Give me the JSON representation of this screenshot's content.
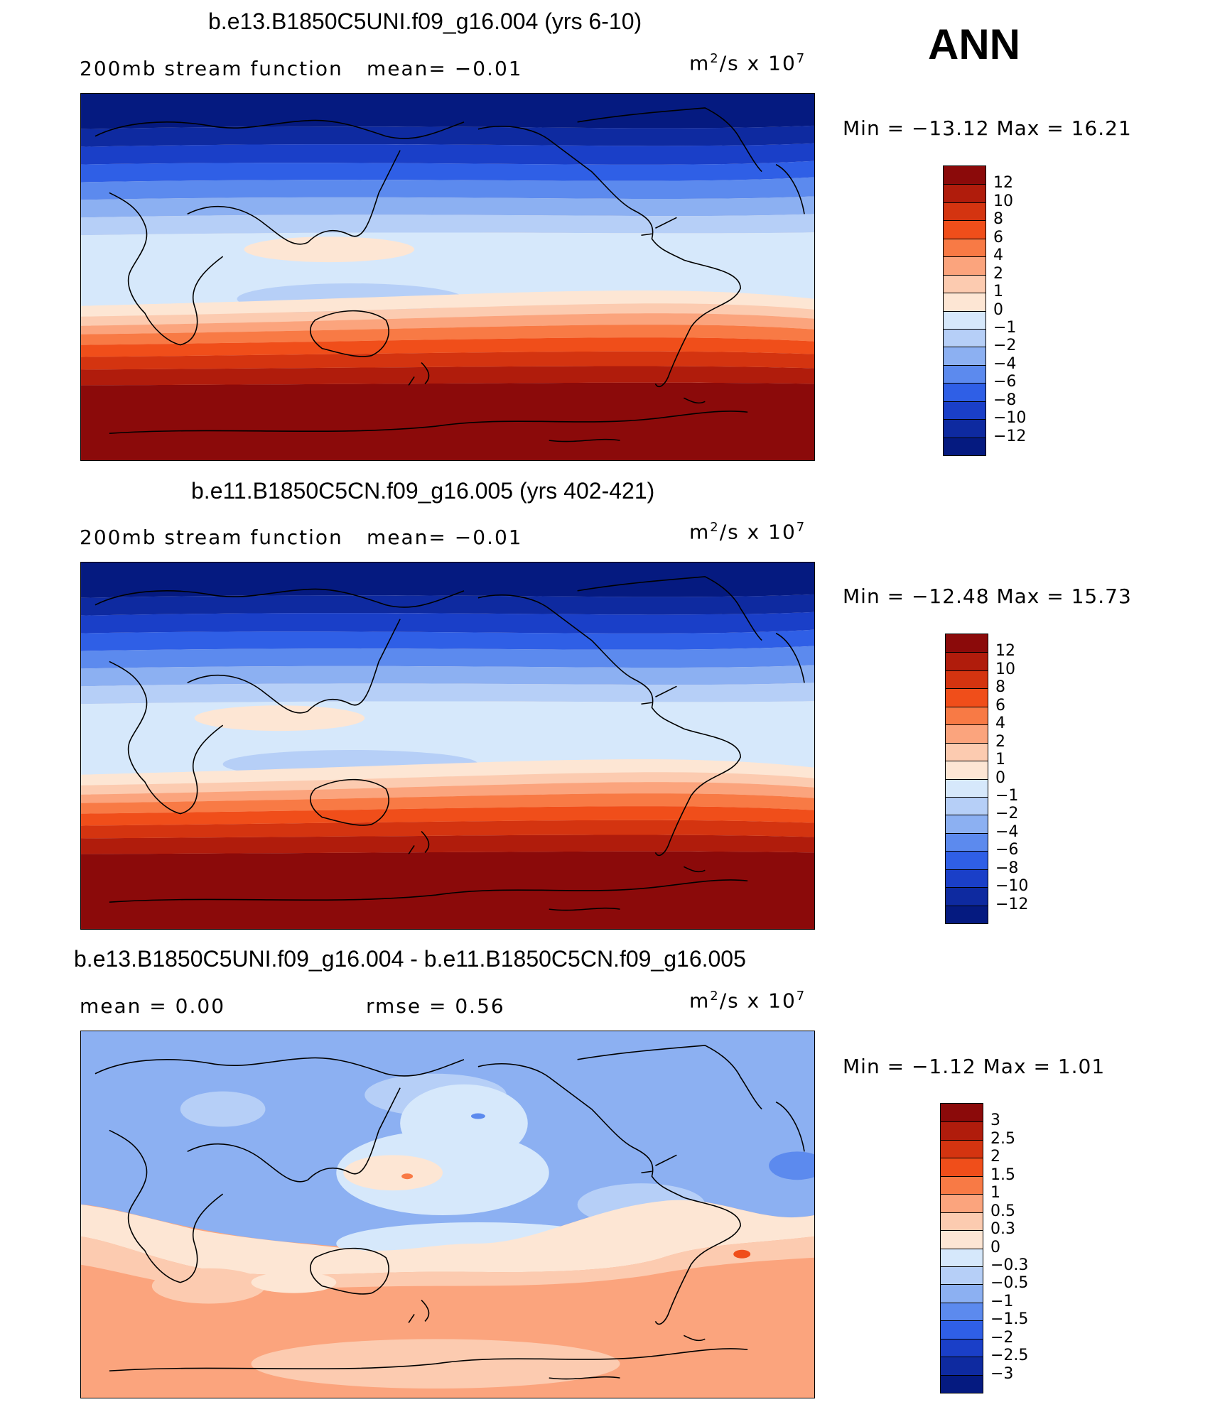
{
  "season": "ANN",
  "panels": [
    {
      "title": "b.e13.B1850C5UNI.f09_g16.004 (yrs 6-10)",
      "left_label": "200mb  stream  function",
      "right_label": "mean=   −0.01",
      "units_base": "m",
      "units_exp": "2",
      "units_mid": "/s  x  10",
      "units_exp2": "7",
      "minmax": "Min  =  −13.12  Max  =    16.21",
      "map_kind": "absolute"
    },
    {
      "title": "b.e11.B1850C5CN.f09_g16.005 (yrs 402-421)",
      "left_label": "200mb  stream  function",
      "right_label": "mean=   −0.01",
      "units_base": "m",
      "units_exp": "2",
      "units_mid": "/s  x  10",
      "units_exp2": "7",
      "minmax": "Min  =  −12.48  Max  =    15.73",
      "map_kind": "absolute"
    },
    {
      "title": "b.e13.B1850C5UNI.f09_g16.004 - b.e11.B1850C5CN.f09_g16.005",
      "left_label": "mean  =      0.00",
      "right_label": "rmse  =      0.56",
      "units_base": "m",
      "units_exp": "2",
      "units_mid": "/s  x  10",
      "units_exp2": "7",
      "minmax": "Min  =     −1.12  Max  =       1.01",
      "map_kind": "difference"
    }
  ],
  "chart_data": [
    {
      "type": "heatmap",
      "title": "b.e13.B1850C5UNI.f09_g16.004 (yrs 6-10)",
      "variable": "200mb stream function",
      "units": "m^2/s x 10^7",
      "mean": -0.01,
      "min": -13.12,
      "max": 16.21,
      "colorbar_levels": [
        "12",
        "10",
        "8",
        "6",
        "4",
        "2",
        "1",
        "0",
        "−1",
        "−2",
        "−4",
        "−6",
        "−8",
        "−10",
        "−12"
      ],
      "colorbar_colors": [
        "#8b0a0a",
        "#b01c0c",
        "#d43410",
        "#f04e1a",
        "#f87a45",
        "#fba47d",
        "#fccbb0",
        "#fde6d4",
        "#d6e8fb",
        "#b6cff7",
        "#8cb0f2",
        "#5c8aee",
        "#2f5fe6",
        "#1a3fc8",
        "#0e2aa0",
        "#051a80"
      ]
    },
    {
      "type": "heatmap",
      "title": "b.e11.B1850C5CN.f09_g16.005 (yrs 402-421)",
      "variable": "200mb stream function",
      "units": "m^2/s x 10^7",
      "mean": -0.01,
      "min": -12.48,
      "max": 15.73,
      "colorbar_levels": [
        "12",
        "10",
        "8",
        "6",
        "4",
        "2",
        "1",
        "0",
        "−1",
        "−2",
        "−4",
        "−6",
        "−8",
        "−10",
        "−12"
      ],
      "colorbar_colors": [
        "#8b0a0a",
        "#b01c0c",
        "#d43410",
        "#f04e1a",
        "#f87a45",
        "#fba47d",
        "#fccbb0",
        "#fde6d4",
        "#d6e8fb",
        "#b6cff7",
        "#8cb0f2",
        "#5c8aee",
        "#2f5fe6",
        "#1a3fc8",
        "#0e2aa0",
        "#051a80"
      ]
    },
    {
      "type": "heatmap",
      "title": "b.e13.B1850C5UNI.f09_g16.004 - b.e11.B1850C5CN.f09_g16.005",
      "variable": "difference",
      "units": "m^2/s x 10^7",
      "mean": 0.0,
      "rmse": 0.56,
      "min": -1.12,
      "max": 1.01,
      "colorbar_levels": [
        "3",
        "2.5",
        "2",
        "1.5",
        "1",
        "0.5",
        "0.3",
        "0",
        "−0.3",
        "−0.5",
        "−1",
        "−1.5",
        "−2",
        "−2.5",
        "−3"
      ],
      "colorbar_colors": [
        "#8b0a0a",
        "#b01c0c",
        "#d43410",
        "#f04e1a",
        "#f87a45",
        "#fba47d",
        "#fccbb0",
        "#fde6d4",
        "#d6e8fb",
        "#b6cff7",
        "#8cb0f2",
        "#5c8aee",
        "#2f5fe6",
        "#1a3fc8",
        "#0e2aa0",
        "#051a80"
      ]
    }
  ]
}
